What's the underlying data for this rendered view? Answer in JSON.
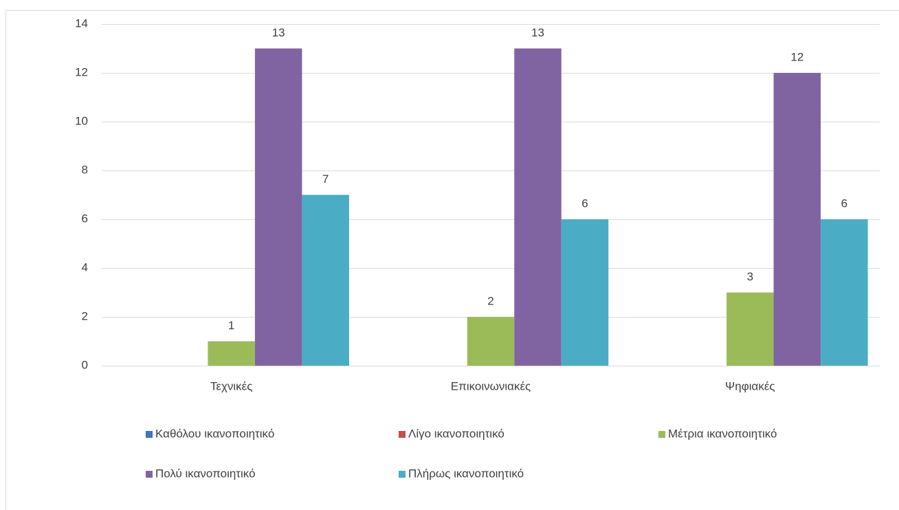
{
  "chart_data": {
    "type": "bar",
    "categories": [
      "Τεχνικές",
      "Επικοινωνιακές",
      "Ψηφιακές"
    ],
    "series": [
      {
        "name": "Καθόλου ικανοποιητικό",
        "color": "#4472c4",
        "values": [
          null,
          null,
          null
        ]
      },
      {
        "name": "Λίγο ικανοποιητικό",
        "color": "#c0504d",
        "values": [
          null,
          null,
          null
        ]
      },
      {
        "name": "Μέτρια ικανοποιητικό",
        "color": "#9bbb59",
        "values": [
          1,
          2,
          3
        ]
      },
      {
        "name": "Πολύ ικανοποιητικό",
        "color": "#8064a2",
        "values": [
          13,
          13,
          12
        ]
      },
      {
        "name": "Πλήρως ικανοποιητικό",
        "color": "#4bacc6",
        "values": [
          7,
          6,
          6
        ]
      }
    ],
    "ylim": [
      0,
      14
    ],
    "yticks": [
      0,
      2,
      4,
      6,
      8,
      10,
      12,
      14
    ],
    "grid": true,
    "legend": "bottom"
  }
}
